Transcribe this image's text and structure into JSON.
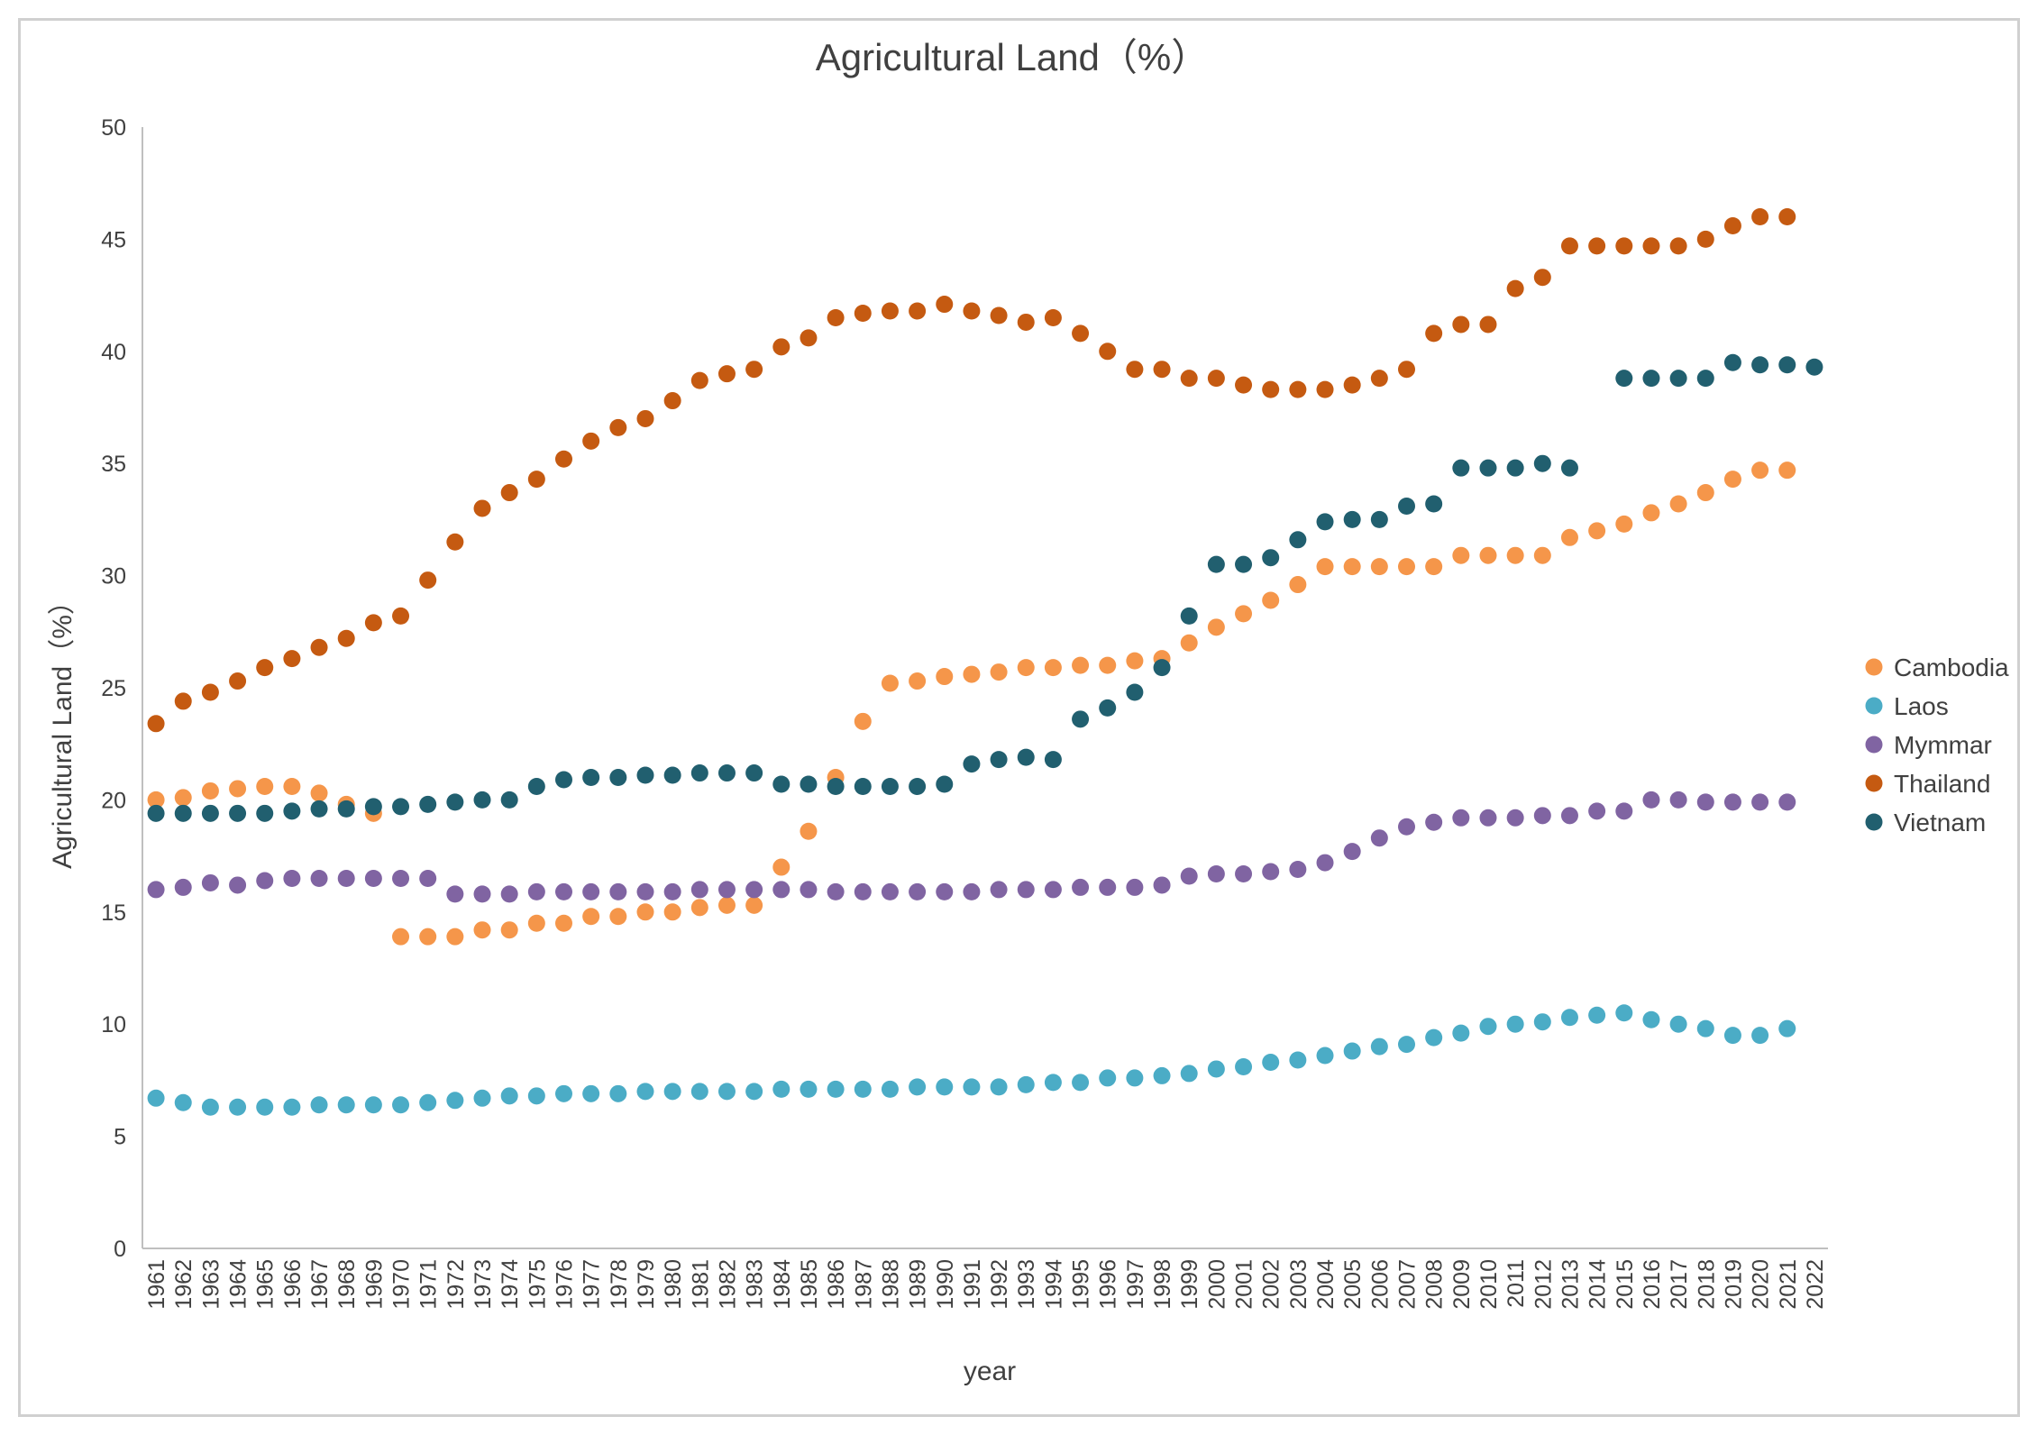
{
  "chart_data": {
    "type": "scatter",
    "title": "Agricultural Land（%）",
    "xlabel": "year",
    "ylabel": "Agricultural Land（%）",
    "ylim": [
      0,
      50
    ],
    "yticks": [
      "0",
      "5",
      "10",
      "15",
      "20",
      "25",
      "30",
      "35",
      "40",
      "45",
      "50"
    ],
    "grid": false,
    "legend_position": "right",
    "x": [
      "1961",
      "1962",
      "1963",
      "1964",
      "1965",
      "1966",
      "1967",
      "1968",
      "1969",
      "1970",
      "1971",
      "1972",
      "1973",
      "1974",
      "1975",
      "1976",
      "1977",
      "1978",
      "1979",
      "1980",
      "1981",
      "1982",
      "1983",
      "1984",
      "1985",
      "1986",
      "1987",
      "1988",
      "1989",
      "1990",
      "1991",
      "1992",
      "1993",
      "1994",
      "1995",
      "1996",
      "1997",
      "1998",
      "1999",
      "2000",
      "2001",
      "2002",
      "2003",
      "2004",
      "2005",
      "2006",
      "2007",
      "2008",
      "2009",
      "2010",
      "2011",
      "2012",
      "2013",
      "2014",
      "2015",
      "2016",
      "2017",
      "2018",
      "2019",
      "2020",
      "2021",
      "2022"
    ],
    "series": [
      {
        "name": "Cambodia",
        "color": "#f5964a",
        "values": [
          20.0,
          20.1,
          20.4,
          20.5,
          20.6,
          20.6,
          20.3,
          19.8,
          19.4,
          13.9,
          13.9,
          13.9,
          14.2,
          14.2,
          14.5,
          14.5,
          14.8,
          14.8,
          15.0,
          15.0,
          15.2,
          15.3,
          15.3,
          17.0,
          18.6,
          21.0,
          23.5,
          25.2,
          25.3,
          25.5,
          25.6,
          25.7,
          25.9,
          25.9,
          26.0,
          26.0,
          26.2,
          26.3,
          27.0,
          27.7,
          28.3,
          28.9,
          29.6,
          30.4,
          30.4,
          30.4,
          30.4,
          30.4,
          30.9,
          30.9,
          30.9,
          30.9,
          31.7,
          32.0,
          32.3,
          32.8,
          33.2,
          33.7,
          34.3,
          34.7,
          34.7,
          null
        ]
      },
      {
        "name": "Laos",
        "color": "#4bacc6",
        "values": [
          6.7,
          6.5,
          6.3,
          6.3,
          6.3,
          6.3,
          6.4,
          6.4,
          6.4,
          6.4,
          6.5,
          6.6,
          6.7,
          6.8,
          6.8,
          6.9,
          6.9,
          6.9,
          7.0,
          7.0,
          7.0,
          7.0,
          7.0,
          7.1,
          7.1,
          7.1,
          7.1,
          7.1,
          7.2,
          7.2,
          7.2,
          7.2,
          7.3,
          7.4,
          7.4,
          7.6,
          7.6,
          7.7,
          7.8,
          8.0,
          8.1,
          8.3,
          8.4,
          8.6,
          8.8,
          9.0,
          9.1,
          9.4,
          9.6,
          9.9,
          10.0,
          10.1,
          10.3,
          10.4,
          10.5,
          10.2,
          10.0,
          9.8,
          9.5,
          9.5,
          9.8,
          null
        ]
      },
      {
        "name": "Mymmar",
        "color": "#8064a2",
        "values": [
          16.0,
          16.1,
          16.3,
          16.2,
          16.4,
          16.5,
          16.5,
          16.5,
          16.5,
          16.5,
          16.5,
          15.8,
          15.8,
          15.8,
          15.9,
          15.9,
          15.9,
          15.9,
          15.9,
          15.9,
          16.0,
          16.0,
          16.0,
          16.0,
          16.0,
          15.9,
          15.9,
          15.9,
          15.9,
          15.9,
          15.9,
          16.0,
          16.0,
          16.0,
          16.1,
          16.1,
          16.1,
          16.2,
          16.6,
          16.7,
          16.7,
          16.8,
          16.9,
          17.2,
          17.7,
          18.3,
          18.8,
          19.0,
          19.2,
          19.2,
          19.2,
          19.3,
          19.3,
          19.5,
          19.5,
          20.0,
          20.0,
          19.9,
          19.9,
          19.9,
          19.9,
          null
        ]
      },
      {
        "name": "Thailand",
        "color": "#c55a11",
        "values": [
          23.4,
          24.4,
          24.8,
          25.3,
          25.9,
          26.3,
          26.8,
          27.2,
          27.9,
          28.2,
          29.8,
          31.5,
          33.0,
          33.7,
          34.3,
          35.2,
          36.0,
          36.6,
          37.0,
          37.8,
          38.7,
          39.0,
          39.2,
          40.2,
          40.6,
          41.5,
          41.7,
          41.8,
          41.8,
          42.1,
          41.8,
          41.6,
          41.3,
          41.5,
          40.8,
          40.0,
          39.2,
          39.2,
          38.8,
          38.8,
          38.5,
          38.3,
          38.3,
          38.3,
          38.5,
          38.8,
          39.2,
          40.8,
          41.2,
          41.2,
          42.8,
          43.3,
          44.7,
          44.7,
          44.7,
          44.7,
          44.7,
          45.0,
          45.6,
          46.0,
          46.0,
          null
        ]
      },
      {
        "name": "Vietnam",
        "color": "#215f6f",
        "values": [
          19.4,
          19.4,
          19.4,
          19.4,
          19.4,
          19.5,
          19.6,
          19.6,
          19.7,
          19.7,
          19.8,
          19.9,
          20.0,
          20.0,
          20.6,
          20.9,
          21.0,
          21.0,
          21.1,
          21.1,
          21.2,
          21.2,
          21.2,
          20.7,
          20.7,
          20.6,
          20.6,
          20.6,
          20.6,
          20.7,
          21.6,
          21.8,
          21.9,
          21.8,
          23.6,
          24.1,
          24.8,
          25.9,
          28.2,
          30.5,
          30.5,
          30.8,
          31.6,
          32.4,
          32.5,
          32.5,
          33.1,
          33.2,
          34.8,
          34.8,
          34.8,
          35.0,
          34.8,
          null,
          38.8,
          38.8,
          38.8,
          38.8,
          39.5,
          39.4,
          39.4,
          39.3
        ]
      }
    ]
  }
}
